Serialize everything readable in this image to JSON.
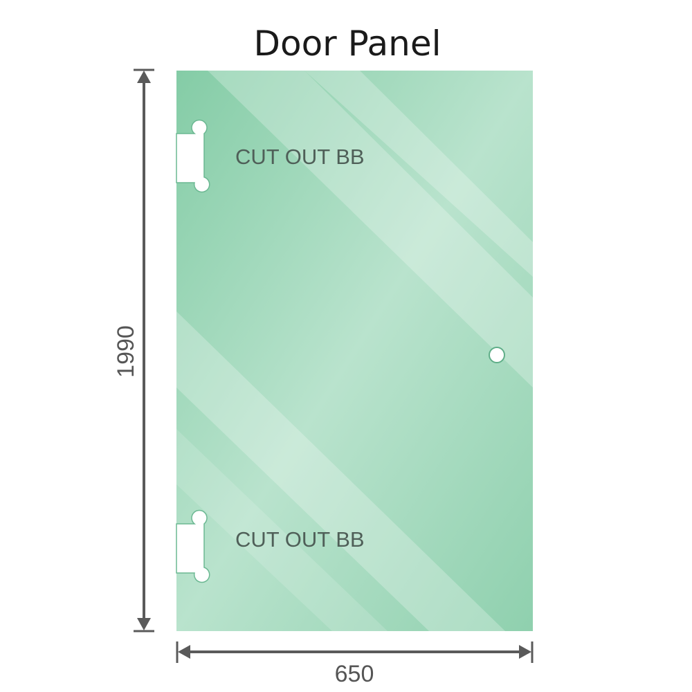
{
  "title": "Door Panel",
  "dimensions": {
    "height": "1990",
    "width": "650"
  },
  "cutouts": [
    {
      "label": "CUT OUT BB"
    },
    {
      "label": "CUT OUT BB"
    }
  ],
  "colors": {
    "glass": "#8fd0ae",
    "glass_light": "#bfe6d2",
    "dimension_line": "#5a5a5a"
  }
}
